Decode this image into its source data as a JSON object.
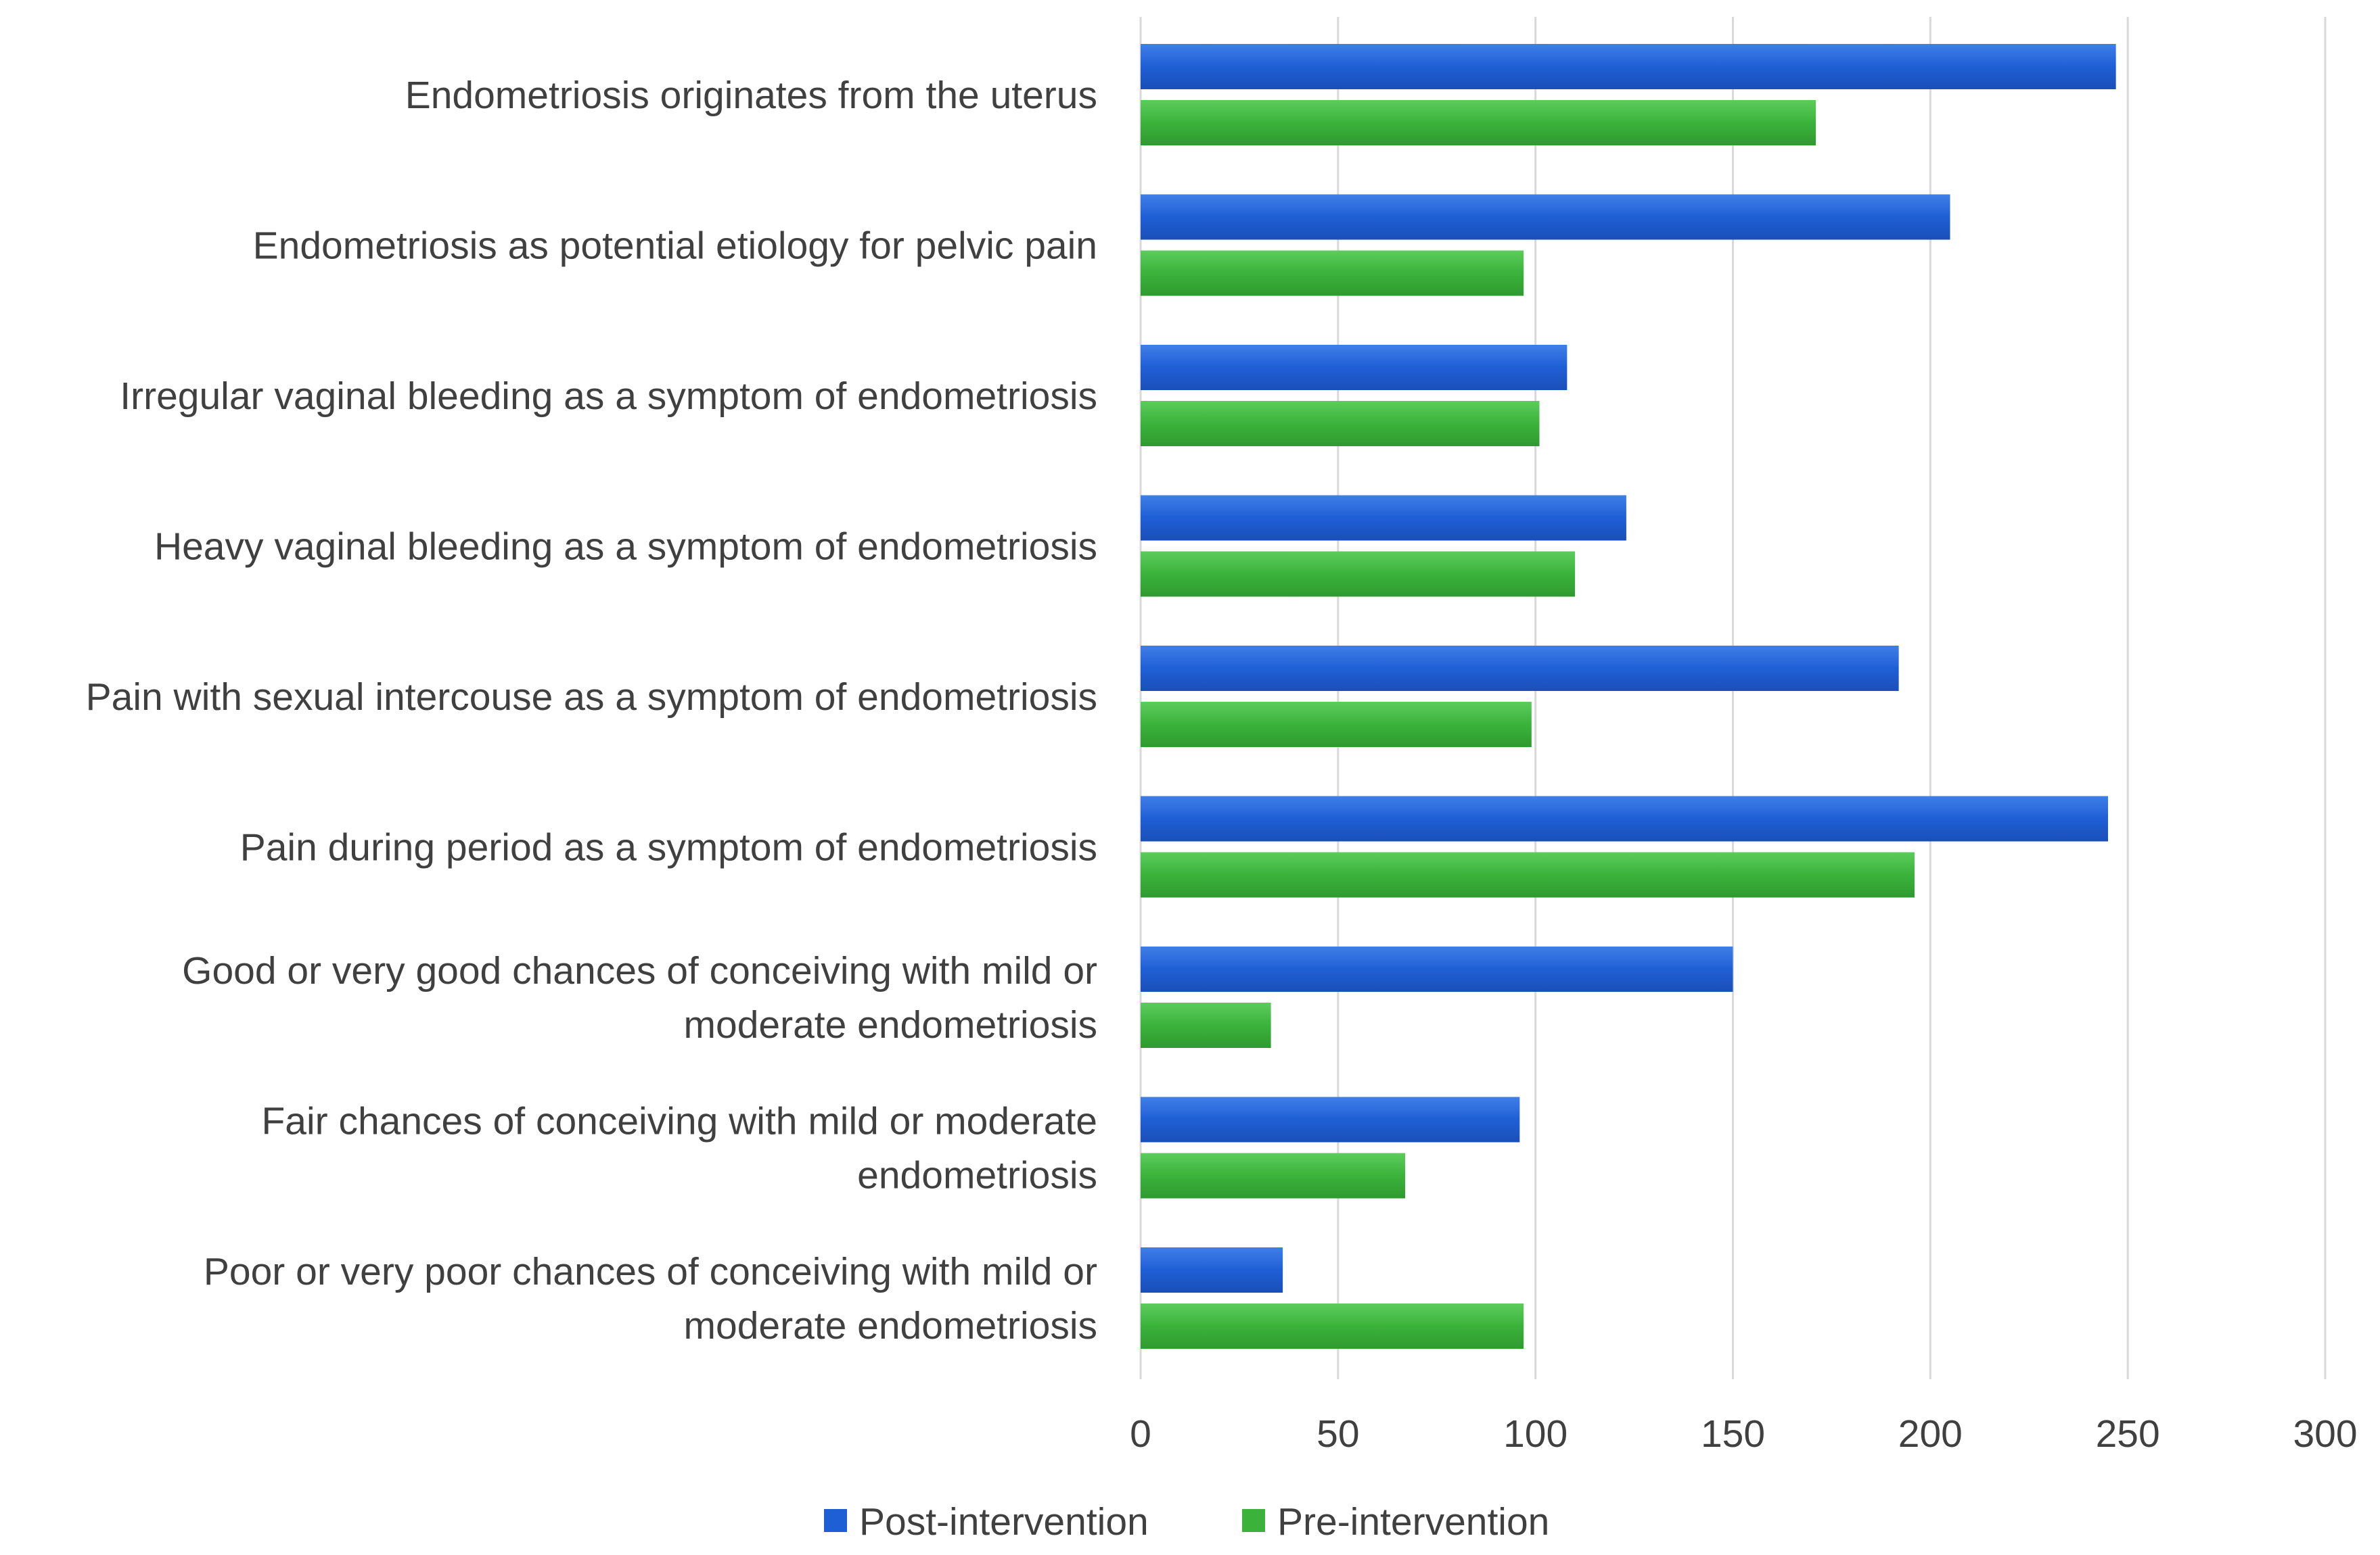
{
  "chart_data": {
    "type": "bar",
    "orientation": "horizontal",
    "title": "",
    "xlabel": "",
    "ylabel": "",
    "xlim": [
      0,
      300
    ],
    "ticks": [
      0,
      50,
      100,
      150,
      200,
      250,
      300
    ],
    "tick_labels": [
      "0",
      "50",
      "100",
      "150",
      "200",
      "250",
      "300"
    ],
    "grid": true,
    "legend_position": "bottom",
    "categories": [
      [
        "Endometriosis originates from the uterus"
      ],
      [
        "Endometriosis as potential etiology for pelvic pain"
      ],
      [
        "Irregular vaginal bleeding as a symptom of endometriosis"
      ],
      [
        "Heavy vaginal bleeding as a symptom of endometriosis"
      ],
      [
        "Pain with sexual intercouse as a symptom of endometriosis"
      ],
      [
        "Pain during period as a symptom of endometriosis"
      ],
      [
        "Good or very good chances of conceiving with mild or",
        "moderate endometriosis"
      ],
      [
        "Fair chances of conceiving with mild or moderate",
        "endometriosis"
      ],
      [
        "Poor or very poor chances of conceiving with mild or",
        "moderate endometriosis"
      ]
    ],
    "series": [
      {
        "name": "Post-intervention",
        "color": "#1f5fd6",
        "values": [
          247,
          205,
          108,
          123,
          192,
          245,
          150,
          96,
          36
        ]
      },
      {
        "name": "Pre-intervention",
        "color": "#3bb33b",
        "values": [
          171,
          97,
          101,
          110,
          99,
          196,
          33,
          67,
          97
        ]
      }
    ]
  }
}
